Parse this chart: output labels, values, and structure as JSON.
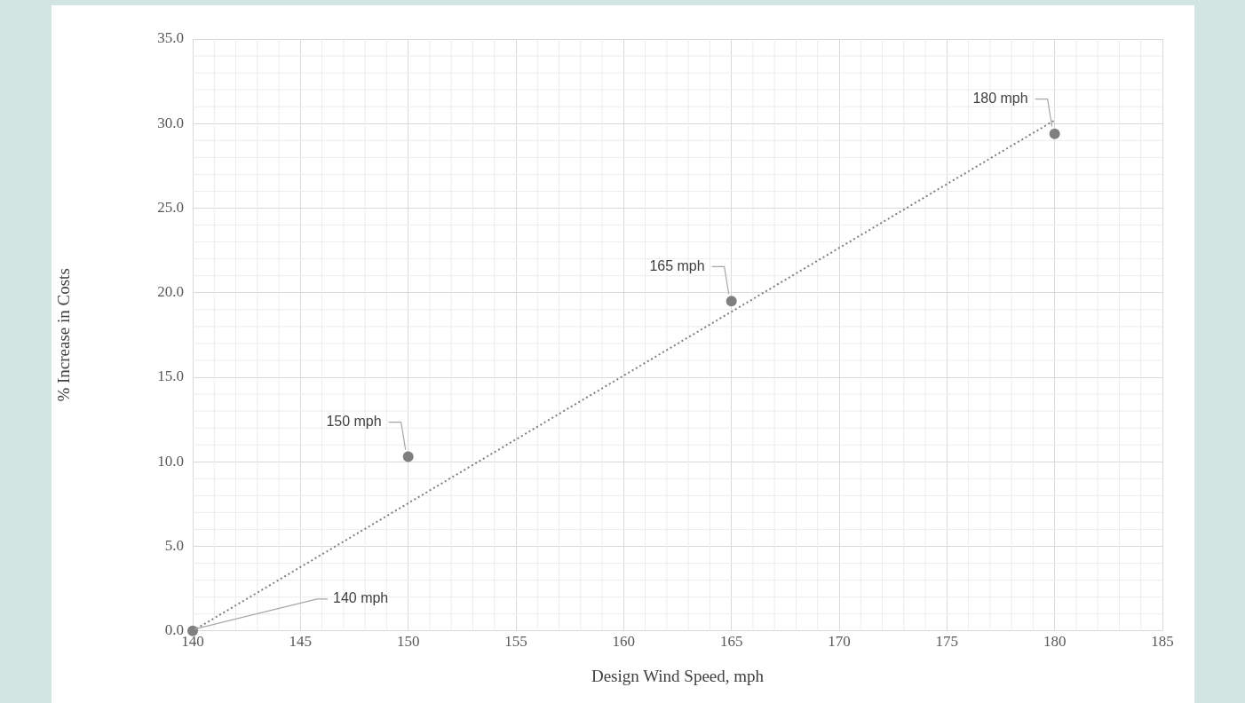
{
  "chart_data": {
    "type": "scatter",
    "xlabel": "Design Wind Speed, mph",
    "ylabel": "% Increase in Costs",
    "series": [
      {
        "type": "scatter",
        "x": [
          140,
          150,
          165,
          180
        ],
        "values": [
          0,
          10.3,
          19.5,
          29.4
        ],
        "color": "#7f7f7f",
        "marker": "circle"
      },
      {
        "type": "line",
        "x": [
          140,
          180
        ],
        "values": [
          0,
          30.2
        ],
        "color": "#7f7f7f",
        "line_style": "dotted",
        "marker": "none"
      }
    ],
    "annotations": [
      {
        "text": "140 mph",
        "x": 140,
        "y": 0
      },
      {
        "text": "150 mph",
        "x": 150,
        "y": 10.3
      },
      {
        "text": "165 mph",
        "x": 165,
        "y": 19.5
      },
      {
        "text": "180 mph",
        "x": 180,
        "y": 29.4
      }
    ],
    "xlim": [
      140,
      185
    ],
    "xticks": [
      140,
      145,
      150,
      155,
      160,
      165,
      170,
      175,
      180,
      185
    ],
    "ylim": [
      0,
      35
    ],
    "yticks": [
      {
        "value": 0,
        "label": "0.0"
      },
      {
        "value": 5,
        "label": "5.0"
      },
      {
        "value": 10,
        "label": "10.0"
      },
      {
        "value": 15,
        "label": "15.0"
      },
      {
        "value": 20,
        "label": "20.0"
      },
      {
        "value": 25,
        "label": "25.0"
      },
      {
        "value": 30,
        "label": "30.0"
      },
      {
        "value": 35,
        "label": "35.0"
      }
    ],
    "grid": true,
    "legend": false
  }
}
